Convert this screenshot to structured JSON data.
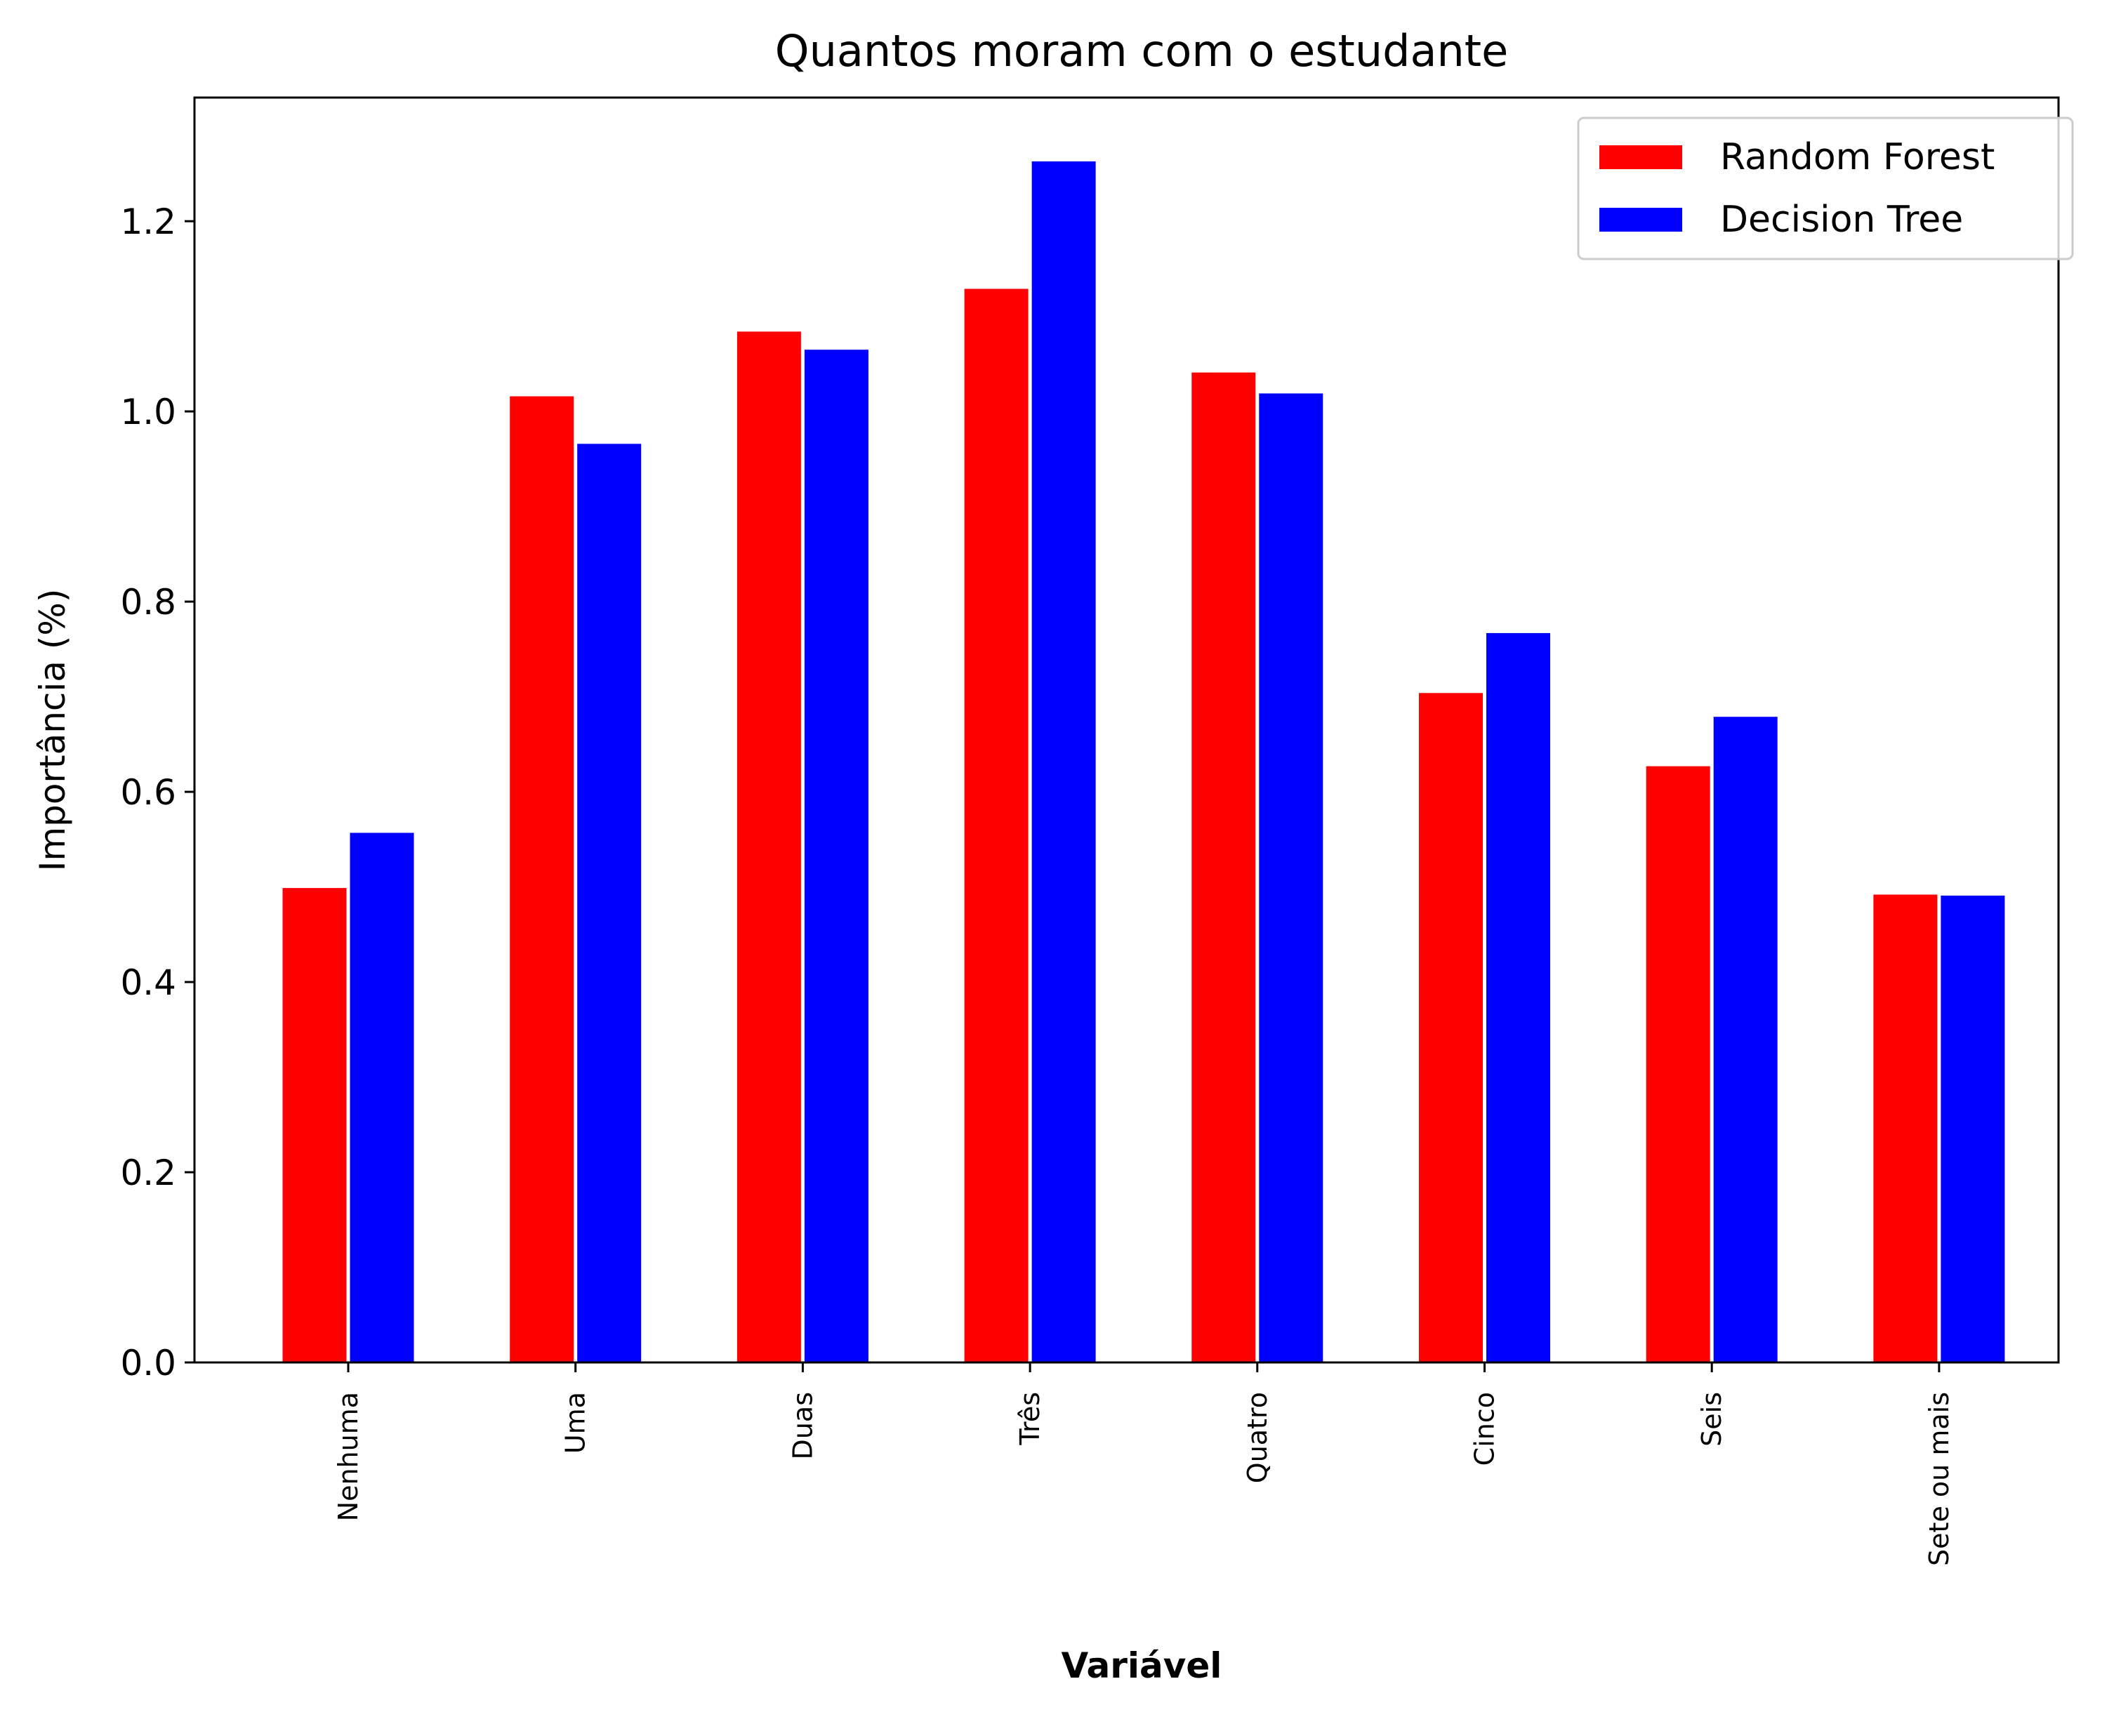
{
  "chart_data": {
    "type": "bar",
    "title": "Quantos moram com o estudante",
    "xlabel": "Variável",
    "ylabel": "Importância (%)",
    "categories": [
      "Nenhuma",
      "Uma",
      "Duas",
      "Três",
      "Quatro",
      "Cinco",
      "Seis",
      "Sete ou mais"
    ],
    "series": [
      {
        "name": "Random Forest",
        "color": "#ff0000",
        "values": [
          0.5,
          1.017,
          1.085,
          1.13,
          1.042,
          0.705,
          0.628,
          0.493
        ]
      },
      {
        "name": "Decision Tree",
        "color": "#0000ff",
        "values": [
          0.558,
          0.967,
          1.066,
          1.264,
          1.02,
          0.768,
          0.68,
          0.492
        ]
      }
    ],
    "ylim": [
      0,
      1.33
    ],
    "yticks": [
      "0.0",
      "0.2",
      "0.4",
      "0.6",
      "0.8",
      "1.0",
      "1.2"
    ],
    "grid": false,
    "legend_position": "top-right"
  }
}
